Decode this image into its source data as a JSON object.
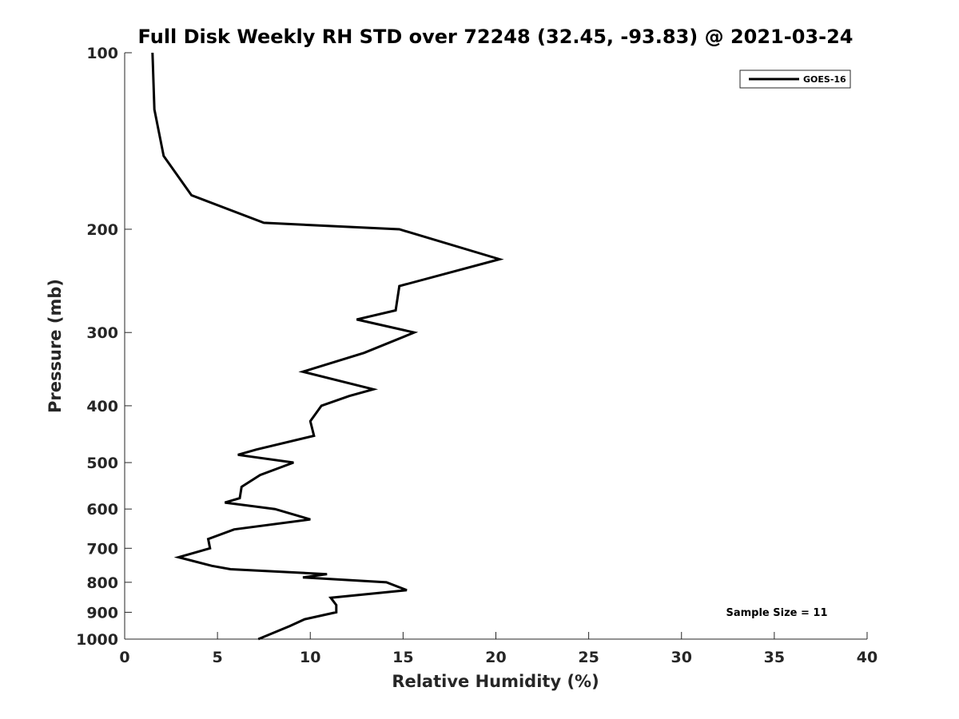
{
  "chart_data": {
    "type": "line",
    "title": "Full Disk Weekly RH STD over 72248 (32.45, -93.83) @ 2021-03-24",
    "xlabel": "Relative Humidity (%)",
    "ylabel": "Pressure (mb)",
    "xlim": [
      0,
      40
    ],
    "ylim": [
      100,
      1000
    ],
    "y_scale": "log",
    "y_reversed": true,
    "x_ticks": [
      0,
      5,
      10,
      15,
      20,
      25,
      30,
      35,
      40
    ],
    "y_ticks": [
      100,
      200,
      300,
      400,
      500,
      600,
      700,
      800,
      900,
      1000
    ],
    "grid": false,
    "legend_position": "top-right",
    "series": [
      {
        "name": "GOES-16",
        "color": "#000000",
        "points": [
          [
            1.5,
            100
          ],
          [
            1.6,
            125
          ],
          [
            2.1,
            150
          ],
          [
            3.6,
            175
          ],
          [
            7.5,
            195
          ],
          [
            14.8,
            200
          ],
          [
            20.2,
            225
          ],
          [
            14.8,
            250
          ],
          [
            14.6,
            275
          ],
          [
            12.5,
            285
          ],
          [
            15.6,
            300
          ],
          [
            12.9,
            325
          ],
          [
            9.6,
            350
          ],
          [
            13.4,
            375
          ],
          [
            12.1,
            385
          ],
          [
            10.6,
            400
          ],
          [
            10.0,
            425
          ],
          [
            10.2,
            450
          ],
          [
            7.1,
            475
          ],
          [
            6.1,
            485
          ],
          [
            9.1,
            500
          ],
          [
            7.3,
            525
          ],
          [
            6.3,
            550
          ],
          [
            6.2,
            575
          ],
          [
            5.4,
            585
          ],
          [
            8.1,
            600
          ],
          [
            10.0,
            625
          ],
          [
            5.9,
            650
          ],
          [
            4.5,
            675
          ],
          [
            4.6,
            700
          ],
          [
            2.9,
            725
          ],
          [
            4.7,
            750
          ],
          [
            5.7,
            760
          ],
          [
            10.9,
            775
          ],
          [
            9.6,
            785
          ],
          [
            14.1,
            800
          ],
          [
            15.2,
            825
          ],
          [
            11.1,
            850
          ],
          [
            11.4,
            875
          ],
          [
            11.4,
            900
          ],
          [
            9.7,
            925
          ],
          [
            8.9,
            950
          ],
          [
            7.2,
            1000
          ]
        ]
      }
    ],
    "annotations": [
      {
        "text": "Sample Size = 11",
        "position": "bottom-right"
      }
    ]
  }
}
